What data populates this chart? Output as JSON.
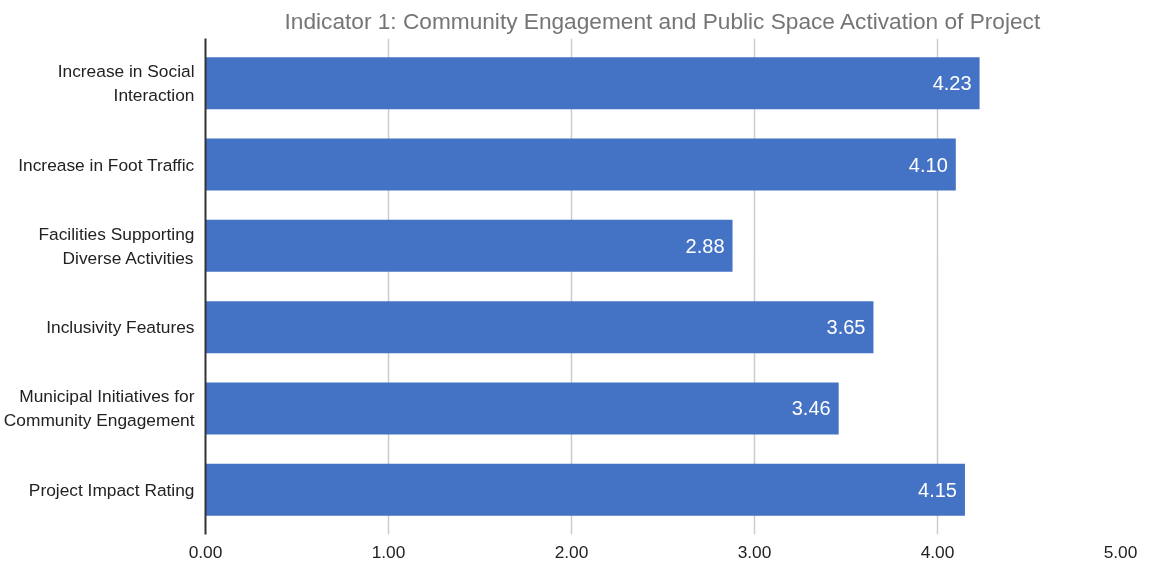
{
  "chart_data": {
    "type": "bar",
    "orientation": "horizontal",
    "title": "Indicator 1: Community Engagement and Public Space Activation of Project",
    "categories": [
      "Increase in Social Interaction",
      "Increase in Foot Traffic",
      "Facilities Supporting Diverse Activities",
      "Inclusivity Features",
      "Municipal Initiatives for Community Engagement",
      "Project Impact Rating"
    ],
    "values": [
      4.23,
      4.1,
      2.88,
      3.65,
      3.46,
      4.15
    ],
    "value_labels": [
      "4.23",
      "4.10",
      "2.88",
      "3.65",
      "3.46",
      "4.15"
    ],
    "color": "#4472c4",
    "xlim": [
      0,
      5
    ],
    "xticks": [
      {
        "value": 0,
        "label": "0.00"
      },
      {
        "value": 1,
        "label": "1.00"
      },
      {
        "value": 2,
        "label": "2.00"
      },
      {
        "value": 3,
        "label": "3.00"
      },
      {
        "value": 4,
        "label": "4.00"
      },
      {
        "value": 5,
        "label": "5.00"
      }
    ],
    "grid": "x"
  }
}
